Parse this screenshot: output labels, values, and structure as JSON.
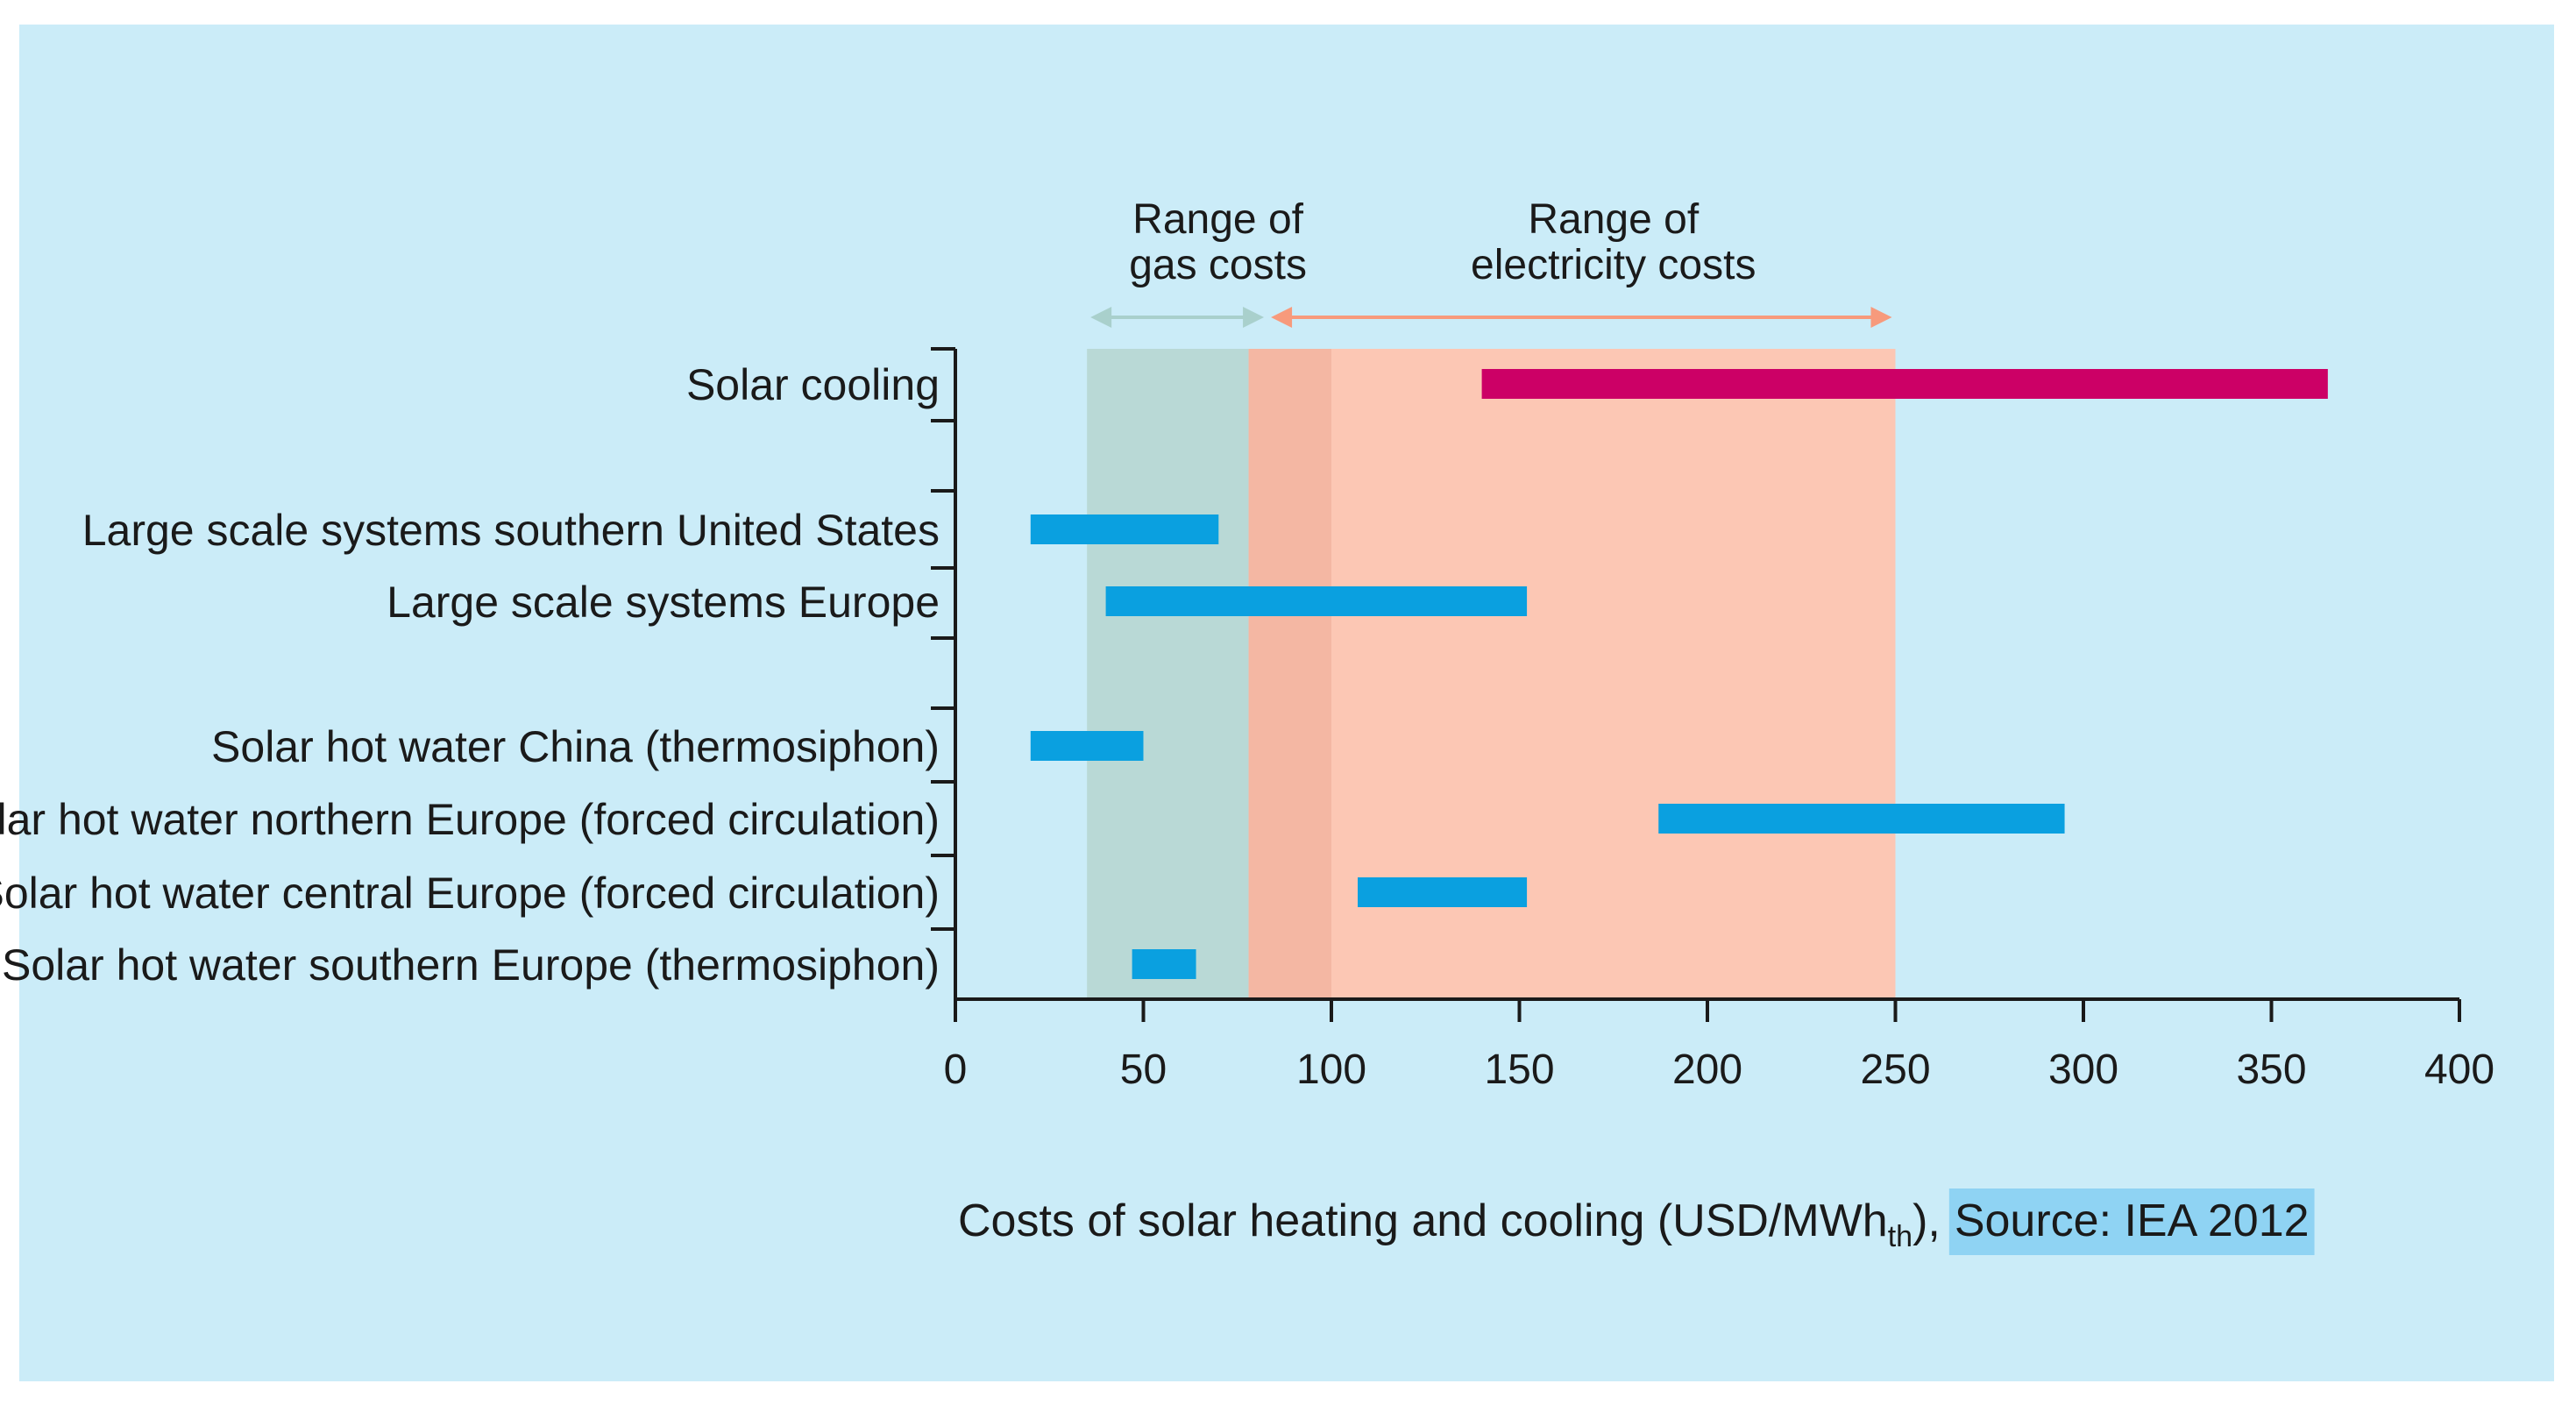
{
  "chart_data": {
    "type": "bar",
    "subtype": "floating-range",
    "title": "",
    "xlabel": "Costs of solar heating and cooling (USD/MWh",
    "xlabel_subscript": "th",
    "xlabel_suffix": "),",
    "source": "Source: IEA 2012",
    "xlim": [
      0,
      400
    ],
    "xticks": [
      0,
      50,
      100,
      150,
      200,
      250,
      300,
      350,
      400
    ],
    "grid": false,
    "bands": [
      {
        "name_lines": [
          "Range of",
          "gas costs"
        ],
        "start": 35,
        "end": 100,
        "color": "#b9d9d6"
      },
      {
        "name_lines": [
          "Range of",
          "electricity costs"
        ],
        "start": 78,
        "end": 250,
        "color": "#fcc7b4"
      }
    ],
    "overlap_color": "#f4b7a3",
    "arrows": [
      {
        "start": 35,
        "end": 83,
        "color": "#a9d0cc"
      },
      {
        "start": 83,
        "end": 250,
        "color": "#f79a7c"
      }
    ],
    "series": [
      {
        "name": "Solar cooling",
        "low": 140,
        "high": 365,
        "color": "#cc0066"
      },
      {
        "name": "Large scale systems southern United States",
        "low": 20,
        "high": 70,
        "color": "#0aa0e0"
      },
      {
        "name": "Large scale systems Europe",
        "low": 40,
        "high": 152,
        "color": "#0aa0e0"
      },
      {
        "name": "Solar hot water China (thermosiphon)",
        "low": 20,
        "high": 50,
        "color": "#0aa0e0"
      },
      {
        "name": "Solar hot water northern Europe (forced circulation)",
        "low": 187,
        "high": 295,
        "color": "#0aa0e0"
      },
      {
        "name": "Solar hot water central Europe (forced circulation)",
        "low": 107,
        "high": 152,
        "color": "#0aa0e0"
      },
      {
        "name": "Solar hot water southern Europe (thermosiphon)",
        "low": 47,
        "high": 64,
        "color": "#0aa0e0"
      }
    ],
    "source_highlight_color": "#8fd3f3"
  }
}
